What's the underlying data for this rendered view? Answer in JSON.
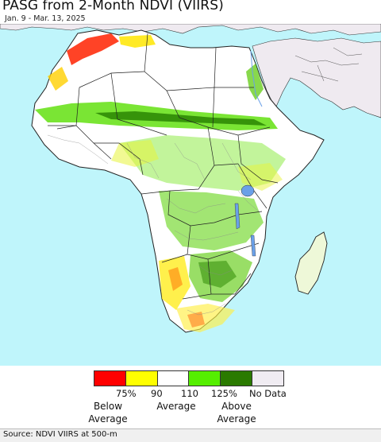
{
  "title": "PASG from 2-Month NDVI (VIIRS)",
  "date_range": "Jan. 9 - Mar. 13, 2025",
  "source": "Source: NDVI VIIRS at 500-m",
  "colors": {
    "ocean": "#bff5fb",
    "land": "#ffffff",
    "outside_region": "#efeaf0",
    "border": "#111111"
  },
  "legend": {
    "swatches": [
      {
        "color": "#ff0000"
      },
      {
        "color": "#ffff00"
      },
      {
        "color": "#ffffff"
      },
      {
        "color": "#55ee00"
      },
      {
        "color": "#2a7a00"
      },
      {
        "color": "#f0ecf2"
      }
    ],
    "ticks": [
      "75%",
      "90",
      "110",
      "125%",
      "No Data"
    ],
    "descriptions": {
      "below": "Below\nAverage",
      "average": "Average",
      "above": "Above\nAverage"
    }
  }
}
